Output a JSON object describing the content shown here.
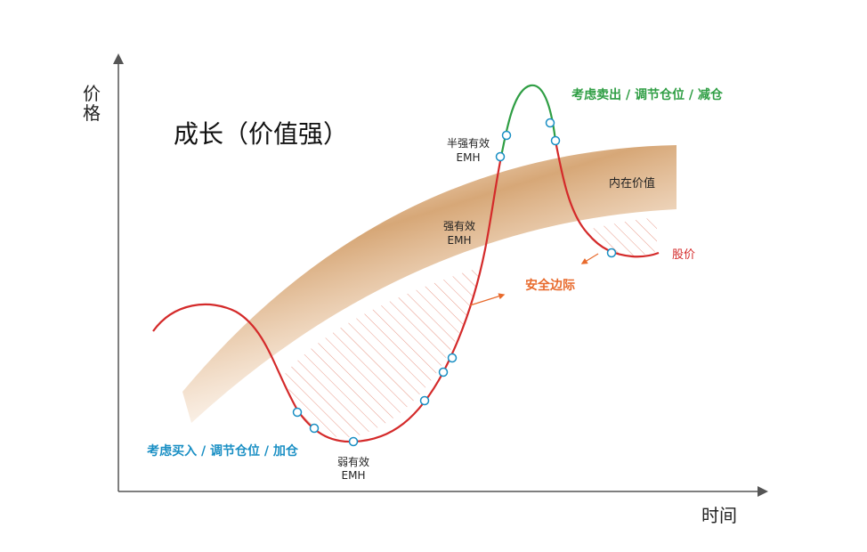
{
  "title": "成长（价值强）",
  "axes": {
    "y_label": "价格",
    "x_label": "时间"
  },
  "labels": {
    "intrinsic_value": "内在价值",
    "stock_price": "股价",
    "safety_margin": "安全边际",
    "buy": "考虑买入 / 调节仓位 / 加仓",
    "sell": "考虑卖出 / 调节仓位 / 减仓",
    "weak_emh_1": "弱有效",
    "weak_emh_2": "EMH",
    "strong_emh_1": "强有效",
    "strong_emh_2": "EMH",
    "semi_strong_emh_1": "半强有效",
    "semi_strong_emh_2": "EMH"
  },
  "colors": {
    "price_line": "#d42a2a",
    "sell_zone_line": "#2f9e44",
    "band": "#d49a5c",
    "buy_text": "#1a8fc4",
    "sell_text": "#2f9e44",
    "safety_text": "#e86a2c",
    "stock_text": "#d42a2a",
    "marker_stroke": "#1a8fc4",
    "hatch": "#e89a8a"
  }
}
